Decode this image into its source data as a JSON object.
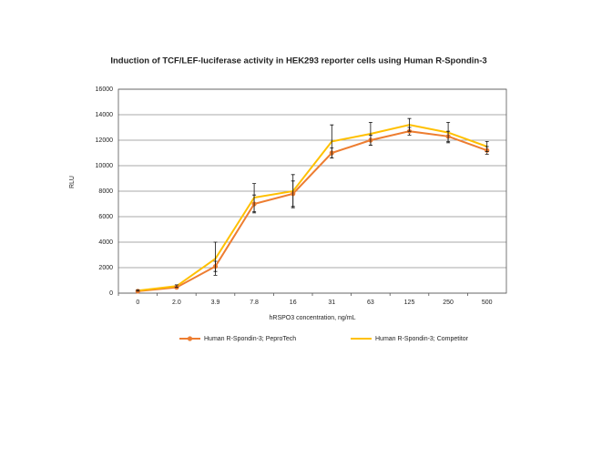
{
  "chart_data": {
    "type": "line",
    "title": "Induction of TCF/LEF-luciferase activity in HEK293 reporter cells using Human R-Spondin-3",
    "x_label": "hRSPO3 concentration, ng/mL",
    "y_label": "RLU",
    "categories": [
      "0",
      "2.0",
      "3.9",
      "7.8",
      "16",
      "31",
      "63",
      "125",
      "250",
      "500"
    ],
    "series": [
      {
        "name": "Human R-Spondin-3; PeproTech",
        "color": "#ed7d31",
        "marker": true,
        "values": [
          150,
          450,
          2100,
          7000,
          7800,
          11000,
          12000,
          12700,
          12300,
          11200
        ],
        "errors": [
          50,
          100,
          400,
          700,
          1000,
          400,
          400,
          300,
          400,
          300
        ]
      },
      {
        "name": "Human R-Spondin-3; Competitor",
        "color": "#ffc000",
        "marker": false,
        "values": [
          200,
          550,
          2700,
          7500,
          8000,
          11900,
          12500,
          13200,
          12600,
          11500
        ],
        "errors": [
          50,
          100,
          1300,
          1100,
          1300,
          1300,
          900,
          500,
          800,
          400
        ]
      }
    ],
    "ylim": [
      0,
      16000
    ],
    "yticks": [
      0,
      2000,
      4000,
      6000,
      8000,
      10000,
      12000,
      14000,
      16000
    ],
    "grid": true,
    "legend": "bottom"
  }
}
